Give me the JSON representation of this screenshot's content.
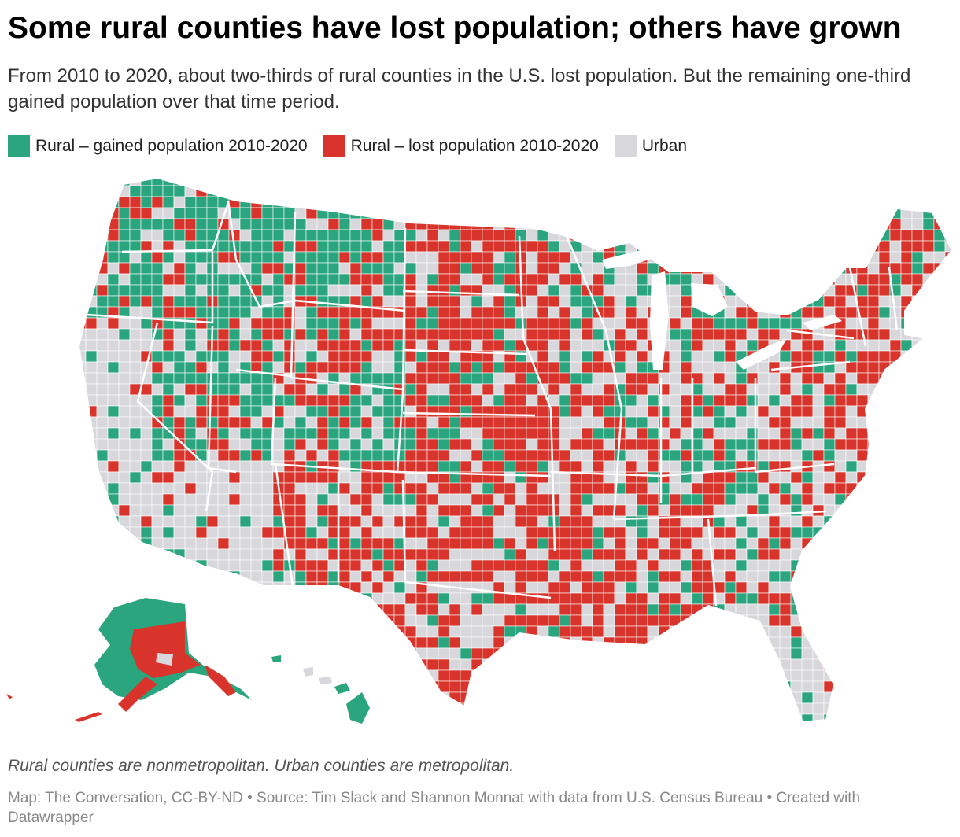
{
  "title": "Some rural counties have lost population; others have grown",
  "subtitle": "From 2010 to 2020, about two-thirds of rural counties in the U.S. lost population. But the remaining one-third gained population over that time period.",
  "legend": [
    {
      "label": "Rural – gained population 2010-2020",
      "color": "#2aa57d"
    },
    {
      "label": "Rural – lost population 2010-2020",
      "color": "#d9342b"
    },
    {
      "label": "Urban",
      "color": "#d8d8dc"
    }
  ],
  "colors": {
    "gained": "#2aa57d",
    "lost": "#d9342b",
    "urban": "#d8d8dc",
    "border": "#ffffff"
  },
  "note": "Rural counties are nonmetropolitan. Urban counties are metropolitan.",
  "source": "Map: The Conversation, CC-BY-ND • Source: Tim Slack and Shannon Monnat with data from U.S. Census Bureau • Created with Datawrapper"
}
